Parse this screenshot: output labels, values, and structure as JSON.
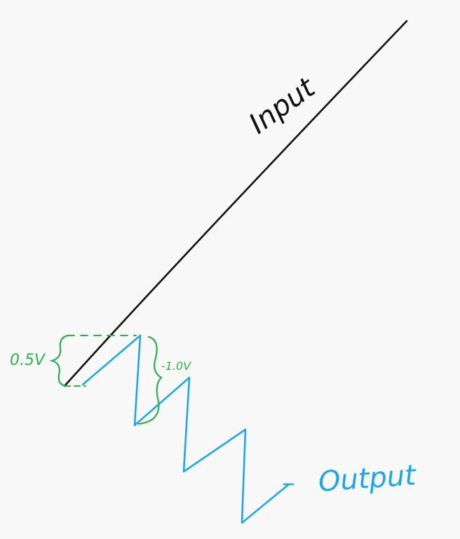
{
  "labels": {
    "input": "Input",
    "output": "Output",
    "initial_step": "0.5V",
    "drop": "-1.0V"
  },
  "colors": {
    "background": "#f8f8f8",
    "input_line": "#111111",
    "output_line": "#1ea7e8",
    "annotation": "#2bb34a"
  }
}
